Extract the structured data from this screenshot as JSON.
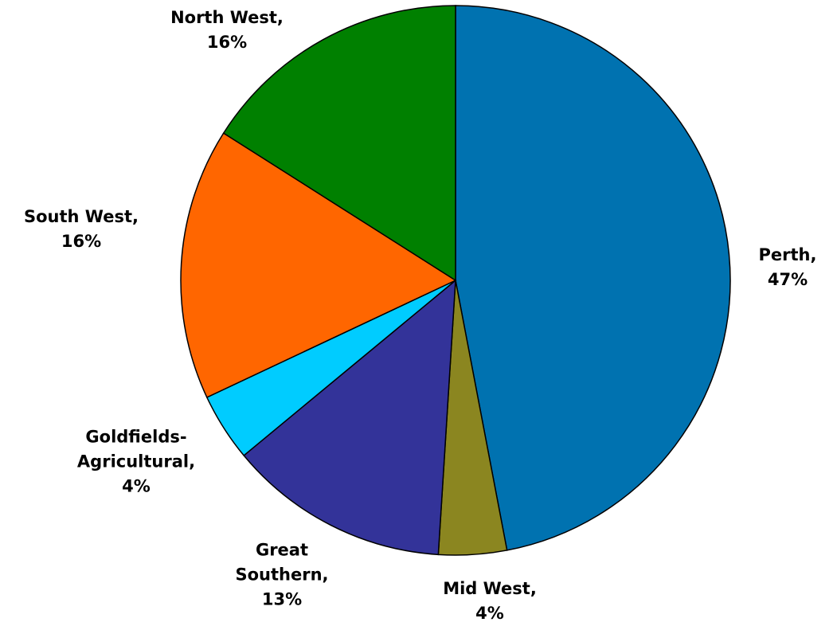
{
  "chart_data": {
    "type": "pie",
    "title": "",
    "slices": [
      {
        "label": "Perth",
        "value": 47,
        "value_label": "47%",
        "color": "#0072B0"
      },
      {
        "label": "Mid West",
        "value": 4,
        "value_label": "4%",
        "color": "#8B8620"
      },
      {
        "label": "Great Southern",
        "value": 13,
        "value_label": "13%",
        "color": "#333399"
      },
      {
        "label": "Goldfields-Agricultural",
        "value": 4,
        "value_label": "4%",
        "color": "#00CCFF"
      },
      {
        "label": "South West",
        "value": 16,
        "value_label": "16%",
        "color": "#FF6600"
      },
      {
        "label": "North West",
        "value": 16,
        "value_label": "16%",
        "color": "#008000"
      }
    ],
    "label_lines": [
      [
        "Perth,",
        "47%"
      ],
      [
        "Mid West,",
        "4%"
      ],
      [
        "Great",
        "Southern,",
        "13%"
      ],
      [
        "Goldfields-",
        "Agricultural,",
        "4%"
      ],
      [
        "South West,",
        "16%"
      ],
      [
        "North West,",
        "16%"
      ]
    ],
    "start_angle": "12 o'clock",
    "direction": "clockwise",
    "legend": "none"
  }
}
